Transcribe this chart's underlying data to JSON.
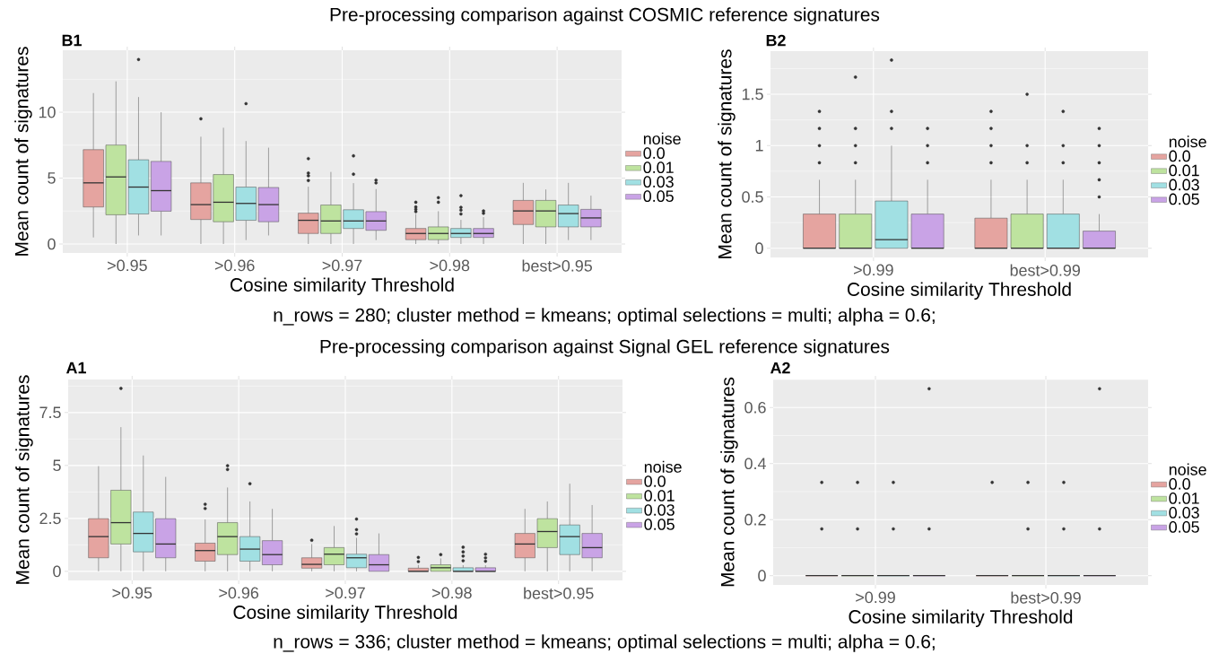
{
  "chart_data": [
    {
      "type": "box",
      "title": "Pre-processing comparison against COSMIC reference signatures",
      "subtitle": "B1",
      "annotations": [
        "n_rows = 280; cluster method = kmeans; optimal selections = multi; alpha = 0.6;"
      ],
      "xlabel": "Cosine similarity Threshold",
      "ylabel": "Mean count of signatures",
      "legend_title": "noise",
      "legend": "right",
      "grid": true,
      "categories": [
        ">0.95",
        ">0.96",
        ">0.97",
        ">0.98",
        "best>0.95"
      ],
      "ylim": [
        -0.68,
        14.7
      ],
      "yticks": [
        0,
        5,
        10
      ],
      "series": [
        {
          "name": "0.0",
          "color": "#e5a4a0",
          "boxes": [
            {
              "low": 0.5,
              "q1": 2.81,
              "median": 4.64,
              "q3": 7.16,
              "high": 11.45
            },
            {
              "low": 0,
              "q1": 1.86,
              "median": 2.99,
              "q3": 4.64,
              "high": 8.14,
              "outliers": [
                9.5
              ]
            },
            {
              "low": 0,
              "q1": 0.8,
              "median": 1.8,
              "q3": 2.34,
              "high": 4.35,
              "outliers": [
                4.82,
                5.18,
                5.38,
                6.48
              ]
            },
            {
              "low": 0,
              "q1": 0.33,
              "median": 0.8,
              "q3": 1.18,
              "high": 2.28,
              "outliers": [
                2.46,
                2.63,
                2.81,
                3.17
              ]
            },
            {
              "low": 0,
              "q1": 1.48,
              "median": 2.51,
              "q3": 3.31,
              "high": 4.64
            }
          ]
        },
        {
          "name": "0.01",
          "color": "#bee39f",
          "boxes": [
            {
              "low": 0,
              "q1": 2.22,
              "median": 5.09,
              "q3": 7.51,
              "high": 12.34
            },
            {
              "low": 0,
              "q1": 1.69,
              "median": 3.17,
              "q3": 5.27,
              "high": 8.82
            },
            {
              "low": 0,
              "q1": 0.8,
              "median": 1.75,
              "q3": 2.96,
              "high": 5.47
            },
            {
              "low": 0,
              "q1": 0.33,
              "median": 0.8,
              "q3": 1.3,
              "high": 2.49,
              "outliers": [
                3.17,
                3.52
              ]
            },
            {
              "low": 0,
              "q1": 1.3,
              "median": 2.51,
              "q3": 3.31,
              "high": 4.14
            }
          ]
        },
        {
          "name": "0.03",
          "color": "#a1e0e3",
          "boxes": [
            {
              "low": 0.65,
              "q1": 2.28,
              "median": 4.32,
              "q3": 6.39,
              "high": 11.15,
              "outliers": [
                14.0
              ]
            },
            {
              "low": 0.3,
              "q1": 1.8,
              "median": 3.08,
              "q3": 4.32,
              "high": 7.81,
              "outliers": [
                10.65
              ]
            },
            {
              "low": 0,
              "q1": 1.18,
              "median": 1.75,
              "q3": 2.6,
              "high": 4.62,
              "outliers": [
                5.3,
                6.69
              ]
            },
            {
              "low": 0,
              "q1": 0.5,
              "median": 0.8,
              "q3": 1.18,
              "high": 1.83,
              "outliers": [
                2.28,
                2.57,
                2.78,
                3.67
              ]
            },
            {
              "low": 0.3,
              "q1": 1.3,
              "median": 2.31,
              "q3": 2.96,
              "high": 4.64
            }
          ]
        },
        {
          "name": "0.05",
          "color": "#c9a3e6",
          "boxes": [
            {
              "low": 0.65,
              "q1": 2.49,
              "median": 4.05,
              "q3": 6.27,
              "high": 10.0
            },
            {
              "low": 0.65,
              "q1": 1.69,
              "median": 2.99,
              "q3": 4.29,
              "high": 7.31
            },
            {
              "low": 0.3,
              "q1": 1.04,
              "median": 1.75,
              "q3": 2.46,
              "high": 4.17,
              "outliers": [
                4.64,
                4.85
              ]
            },
            {
              "low": 0,
              "q1": 0.5,
              "median": 0.8,
              "q3": 1.18,
              "high": 2.04,
              "outliers": [
                2.34,
                2.51
              ]
            },
            {
              "low": 0.3,
              "q1": 1.3,
              "median": 1.98,
              "q3": 2.63,
              "high": 3.67
            }
          ]
        }
      ]
    },
    {
      "type": "box",
      "subtitle": "B2",
      "xlabel": "Cosine similarity Threshold",
      "ylabel": "Mean count of signatures",
      "legend_title": "noise",
      "legend": "right",
      "grid": true,
      "categories": [
        ">0.99",
        "best>0.99"
      ],
      "ylim": [
        -0.09,
        1.92
      ],
      "yticks": [
        0,
        0.5,
        1,
        1.5
      ],
      "series": [
        {
          "name": "0.0",
          "color": "#e5a4a0",
          "boxes": [
            {
              "low": 0,
              "q1": 0,
              "median": 0,
              "q3": 0.333,
              "high": 0.667,
              "outliers": [
                0.833,
                1.0,
                1.167,
                1.333
              ]
            },
            {
              "low": 0,
              "q1": 0,
              "median": 0,
              "q3": 0.293,
              "high": 0.667,
              "outliers": [
                0.833,
                1.0,
                1.167,
                1.333
              ]
            }
          ]
        },
        {
          "name": "0.01",
          "color": "#bee39f",
          "boxes": [
            {
              "low": 0,
              "q1": 0,
              "median": 0,
              "q3": 0.333,
              "high": 0.667,
              "outliers": [
                0.833,
                1.0,
                1.167,
                1.667
              ]
            },
            {
              "low": 0,
              "q1": 0,
              "median": 0,
              "q3": 0.333,
              "high": 0.667,
              "outliers": [
                0.833,
                1.0,
                1.5
              ]
            }
          ]
        },
        {
          "name": "0.03",
          "color": "#a1e0e3",
          "boxes": [
            {
              "low": 0,
              "q1": 0,
              "median": 0.084,
              "q3": 0.46,
              "high": 1.0,
              "outliers": [
                1.167,
                1.333,
                1.833
              ]
            },
            {
              "low": 0,
              "q1": 0,
              "median": 0,
              "q3": 0.333,
              "high": 0.667,
              "outliers": [
                0.833,
                1.0,
                1.333
              ]
            }
          ]
        },
        {
          "name": "0.05",
          "color": "#c9a3e6",
          "boxes": [
            {
              "low": 0,
              "q1": 0,
              "median": 0,
              "q3": 0.333,
              "high": 0.667,
              "outliers": [
                0.833,
                1.0,
                1.167
              ]
            },
            {
              "low": 0,
              "q1": 0,
              "median": 0,
              "q3": 0.167,
              "high": 0.333,
              "outliers": [
                0.5,
                0.667,
                0.833,
                1.0,
                1.167
              ]
            }
          ]
        }
      ]
    },
    {
      "type": "box",
      "title": "Pre-processing comparison against Signal GEL reference signatures",
      "subtitle": "A1",
      "annotations": [
        "n_rows = 336; cluster method = kmeans; optimal selections = multi; alpha = 0.6;"
      ],
      "xlabel": "Cosine similarity Threshold",
      "ylabel": "Mean count of signatures",
      "legend_title": "noise",
      "legend": "right",
      "grid": true,
      "categories": [
        ">0.95",
        ">0.96",
        ">0.97",
        ">0.98",
        "best>0.95"
      ],
      "ylim": [
        -0.43,
        9.06
      ],
      "yticks": [
        0,
        2.5,
        5,
        7.5
      ],
      "series": [
        {
          "name": "0.0",
          "color": "#e5a4a0",
          "boxes": [
            {
              "low": 0,
              "q1": 0.64,
              "median": 1.64,
              "q3": 2.49,
              "high": 4.97
            },
            {
              "low": 0,
              "q1": 0.48,
              "median": 0.98,
              "q3": 1.33,
              "high": 2.45,
              "outliers": [
                2.97,
                3.17
              ]
            },
            {
              "low": 0,
              "q1": 0.15,
              "median": 0.33,
              "q3": 0.64,
              "high": 1.29,
              "outliers": [
                1.47
              ]
            },
            {
              "low": 0,
              "q1": 0,
              "median": 0,
              "q3": 0.15,
              "high": 0.3,
              "outliers": [
                0.46,
                0.66
              ]
            },
            {
              "low": 0,
              "q1": 0.64,
              "median": 1.29,
              "q3": 1.79,
              "high": 2.95
            }
          ]
        },
        {
          "name": "0.01",
          "color": "#bee39f",
          "boxes": [
            {
              "low": 0,
              "q1": 1.29,
              "median": 2.3,
              "q3": 3.83,
              "high": 6.81,
              "outliers": [
                8.64
              ]
            },
            {
              "low": 0,
              "q1": 0.79,
              "median": 1.64,
              "q3": 2.3,
              "high": 3.96,
              "outliers": [
                4.81,
                4.99
              ]
            },
            {
              "low": 0,
              "q1": 0.31,
              "median": 0.81,
              "q3": 1.12,
              "high": 2.14
            },
            {
              "low": 0,
              "q1": 0,
              "median": 0.17,
              "q3": 0.31,
              "high": 0.61,
              "outliers": [
                0.79
              ]
            },
            {
              "low": 0,
              "q1": 1.12,
              "median": 1.88,
              "q3": 2.49,
              "high": 3.3
            }
          ]
        },
        {
          "name": "0.03",
          "color": "#a1e0e3",
          "boxes": [
            {
              "low": 0,
              "q1": 0.92,
              "median": 1.79,
              "q3": 2.8,
              "high": 5.47
            },
            {
              "low": 0,
              "q1": 0.48,
              "median": 1.05,
              "q3": 1.64,
              "high": 3.3,
              "outliers": [
                4.14
              ]
            },
            {
              "low": 0,
              "q1": 0.17,
              "median": 0.64,
              "q3": 0.81,
              "high": 1.58,
              "outliers": [
                1.77,
                1.97,
                2.47
              ]
            },
            {
              "low": 0,
              "q1": 0,
              "median": 0,
              "q3": 0.17,
              "high": 0.29,
              "outliers": [
                0.5,
                0.72,
                0.92,
                1.14
              ]
            },
            {
              "low": 0,
              "q1": 0.79,
              "median": 1.64,
              "q3": 2.19,
              "high": 4.14
            }
          ]
        },
        {
          "name": "0.05",
          "color": "#c9a3e6",
          "boxes": [
            {
              "low": 0,
              "q1": 0.64,
              "median": 1.29,
              "q3": 2.49,
              "high": 4.46
            },
            {
              "low": 0,
              "q1": 0.31,
              "median": 0.79,
              "q3": 1.45,
              "high": 2.95
            },
            {
              "low": 0,
              "q1": 0,
              "median": 0.31,
              "q3": 0.79,
              "high": 1.79
            },
            {
              "low": 0,
              "q1": 0,
              "median": 0,
              "q3": 0.17,
              "high": 0.29,
              "outliers": [
                0.48,
                0.64,
                0.81
              ]
            },
            {
              "low": 0,
              "q1": 0.64,
              "median": 1.12,
              "q3": 1.79,
              "high": 3.13
            }
          ]
        }
      ]
    },
    {
      "type": "box",
      "subtitle": "A2",
      "xlabel": "Cosine similarity Threshold",
      "ylabel": "Mean count of signatures",
      "legend_title": "noise",
      "legend": "right",
      "grid": true,
      "categories": [
        ">0.99",
        "best>0.99"
      ],
      "ylim": [
        -0.033,
        0.7
      ],
      "yticks": [
        0,
        0.2,
        0.4,
        0.6
      ],
      "series": [
        {
          "name": "0.0",
          "color": "#e5a4a0",
          "boxes": [
            {
              "low": 0,
              "q1": 0,
              "median": 0,
              "q3": 0,
              "high": 0,
              "outliers": [
                0.167,
                0.333
              ]
            },
            {
              "low": 0,
              "q1": 0,
              "median": 0,
              "q3": 0,
              "high": 0,
              "outliers": [
                0.333
              ]
            }
          ]
        },
        {
          "name": "0.01",
          "color": "#bee39f",
          "boxes": [
            {
              "low": 0,
              "q1": 0,
              "median": 0,
              "q3": 0,
              "high": 0,
              "outliers": [
                0.167,
                0.333
              ]
            },
            {
              "low": 0,
              "q1": 0,
              "median": 0,
              "q3": 0,
              "high": 0,
              "outliers": [
                0.167,
                0.333
              ]
            }
          ]
        },
        {
          "name": "0.03",
          "color": "#a1e0e3",
          "boxes": [
            {
              "low": 0,
              "q1": 0,
              "median": 0,
              "q3": 0,
              "high": 0,
              "outliers": [
                0.167,
                0.333
              ]
            },
            {
              "low": 0,
              "q1": 0,
              "median": 0,
              "q3": 0,
              "high": 0,
              "outliers": [
                0.167,
                0.333
              ]
            }
          ]
        },
        {
          "name": "0.05",
          "color": "#c9a3e6",
          "boxes": [
            {
              "low": 0,
              "q1": 0,
              "median": 0,
              "q3": 0,
              "high": 0,
              "outliers": [
                0.167,
                0.667
              ]
            },
            {
              "low": 0,
              "q1": 0,
              "median": 0,
              "q3": 0,
              "high": 0,
              "outliers": [
                0.167,
                0.667
              ]
            }
          ]
        }
      ]
    }
  ]
}
